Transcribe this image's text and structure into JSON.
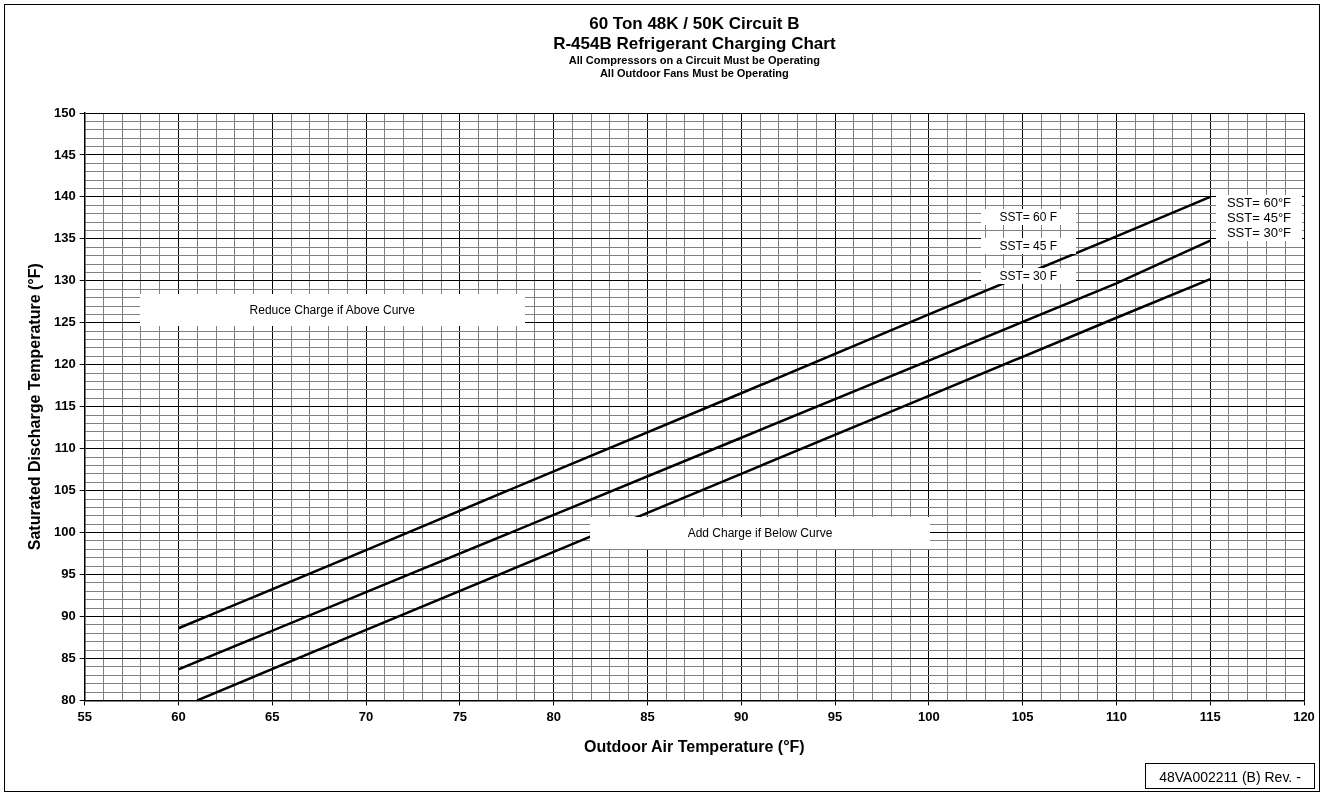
{
  "chart_data": {
    "type": "line",
    "title": "60 Ton 48K / 50K Circuit B\nR-454B Refrigerant Charging Chart",
    "subtitle": "All Compressors on a Circuit Must be Operating\nAll Outdoor Fans Must be Operating",
    "xlabel": "Outdoor Air Temperature (°F)",
    "ylabel": "Saturated Discharge Temperature (°F)",
    "series": [
      {
        "name": "SST= 60°F",
        "color": "#000000",
        "x": [
          60,
          70,
          80,
          90,
          100,
          110,
          115
        ],
        "values": [
          88.6,
          97.9,
          107.3,
          116.6,
          126,
          135.3,
          140
        ]
      },
      {
        "name": "SST= 45°F",
        "color": "#000000",
        "x": [
          60,
          70,
          80,
          90,
          100,
          110,
          115
        ],
        "values": [
          83.7,
          92.9,
          102.1,
          111.3,
          120.5,
          129.7,
          134.8
        ]
      },
      {
        "name": "SST= 30°F",
        "color": "#000000",
        "x": [
          61,
          70,
          80,
          90,
          100,
          110,
          115
        ],
        "values": [
          80,
          88.4,
          97.7,
          107,
          116.3,
          125.6,
          130.2
        ]
      }
    ],
    "xlim": [
      55,
      120
    ],
    "ylim": [
      80,
      150
    ],
    "xticks": [
      55,
      {
        "value": 56,
        "label": null
      },
      {
        "value": 57,
        "label": null
      },
      {
        "value": 58,
        "label": null
      },
      {
        "value": 59,
        "label": null
      },
      60,
      {
        "value": 61,
        "label": null
      },
      {
        "value": 62,
        "label": null
      },
      {
        "value": 63,
        "label": null
      },
      {
        "value": 64,
        "label": null
      },
      65,
      {
        "value": 66,
        "label": null
      },
      {
        "value": 67,
        "label": null
      },
      {
        "value": 68,
        "label": null
      },
      {
        "value": 69,
        "label": null
      },
      70,
      {
        "value": 71,
        "label": null
      },
      {
        "value": 72,
        "label": null
      },
      {
        "value": 73,
        "label": null
      },
      {
        "value": 74,
        "label": null
      },
      75,
      {
        "value": 76,
        "label": null
      },
      {
        "value": 77,
        "label": null
      },
      {
        "value": 78,
        "label": null
      },
      {
        "value": 79,
        "label": null
      },
      80,
      {
        "value": 81,
        "label": null
      },
      {
        "value": 82,
        "label": null
      },
      {
        "value": 83,
        "label": null
      },
      {
        "value": 84,
        "label": null
      },
      85,
      {
        "value": 86,
        "label": null
      },
      {
        "value": 87,
        "label": null
      },
      {
        "value": 88,
        "label": null
      },
      {
        "value": 89,
        "label": null
      },
      90,
      {
        "value": 91,
        "label": null
      },
      {
        "value": 92,
        "label": null
      },
      {
        "value": 93,
        "label": null
      },
      {
        "value": 94,
        "label": null
      },
      95,
      {
        "value": 96,
        "label": null
      },
      {
        "value": 97,
        "label": null
      },
      {
        "value": 98,
        "label": null
      },
      {
        "value": 99,
        "label": null
      },
      100,
      {
        "value": 101,
        "label": null
      },
      {
        "value": 102,
        "label": null
      },
      {
        "value": 103,
        "label": null
      },
      {
        "value": 104,
        "label": null
      },
      105,
      {
        "value": 106,
        "label": null
      },
      {
        "value": 107,
        "label": null
      },
      {
        "value": 108,
        "label": null
      },
      {
        "value": 109,
        "label": null
      },
      110,
      {
        "value": 111,
        "label": null
      },
      {
        "value": 112,
        "label": null
      },
      {
        "value": 113,
        "label": null
      },
      {
        "value": 114,
        "label": null
      },
      115,
      {
        "value": 116,
        "label": null
      },
      {
        "value": 117,
        "label": null
      },
      {
        "value": 118,
        "label": null
      },
      {
        "value": 119,
        "label": null
      },
      120
    ],
    "yticks": [
      80,
      {
        "value": 81,
        "label": null
      },
      {
        "value": 82,
        "label": null
      },
      {
        "value": 83,
        "label": null
      },
      {
        "value": 84,
        "label": null
      },
      85,
      {
        "value": 86,
        "label": null
      },
      {
        "value": 87,
        "label": null
      },
      {
        "value": 88,
        "label": null
      },
      {
        "value": 89,
        "label": null
      },
      90,
      {
        "value": 91,
        "label": null
      },
      {
        "value": 92,
        "label": null
      },
      {
        "value": 93,
        "label": null
      },
      {
        "value": 94,
        "label": null
      },
      95,
      {
        "value": 96,
        "label": null
      },
      {
        "value": 97,
        "label": null
      },
      {
        "value": 98,
        "label": null
      },
      {
        "value": 99,
        "label": null
      },
      100,
      {
        "value": 101,
        "label": null
      },
      {
        "value": 102,
        "label": null
      },
      {
        "value": 103,
        "label": null
      },
      {
        "value": 104,
        "label": null
      },
      105,
      {
        "value": 106,
        "label": null
      },
      {
        "value": 107,
        "label": null
      },
      {
        "value": 108,
        "label": null
      },
      {
        "value": 109,
        "label": null
      },
      110,
      {
        "value": 111,
        "label": null
      },
      {
        "value": 112,
        "label": null
      },
      {
        "value": 113,
        "label": null
      },
      {
        "value": 114,
        "label": null
      },
      115,
      {
        "value": 116,
        "label": null
      },
      {
        "value": 117,
        "label": null
      },
      {
        "value": 118,
        "label": null
      },
      {
        "value": 119,
        "label": null
      },
      120,
      {
        "value": 121,
        "label": null
      },
      {
        "value": 122,
        "label": null
      },
      {
        "value": 123,
        "label": null
      },
      {
        "value": 124,
        "label": null
      },
      125,
      {
        "value": 126,
        "label": null
      },
      {
        "value": 127,
        "label": null
      },
      {
        "value": 128,
        "label": null
      },
      {
        "value": 129,
        "label": null
      },
      130,
      {
        "value": 131,
        "label": null
      },
      {
        "value": 132,
        "label": null
      },
      {
        "value": 133,
        "label": null
      },
      {
        "value": 134,
        "label": null
      },
      135,
      {
        "value": 136,
        "label": null
      },
      {
        "value": 137,
        "label": null
      },
      {
        "value": 138,
        "label": null
      },
      {
        "value": 139,
        "label": null
      },
      140,
      {
        "value": 141,
        "label": null
      },
      {
        "value": 142,
        "label": null
      },
      {
        "value": 143,
        "label": null
      },
      {
        "value": 144,
        "label": null
      },
      145,
      {
        "value": 146,
        "label": null
      },
      {
        "value": 147,
        "label": null
      },
      {
        "value": 148,
        "label": null
      },
      {
        "value": 149,
        "label": null
      },
      150
    ],
    "grid": true,
    "legend": false,
    "marker": "none",
    "line_style": "solid",
    "annotations": [
      "Reduce Charge if Above Curve",
      "Add Charge if Below Curve",
      "SST= 60 F",
      "SST= 45 F",
      "SST= 30 F",
      "48VA002211 (B)  Rev. -"
    ]
  }
}
